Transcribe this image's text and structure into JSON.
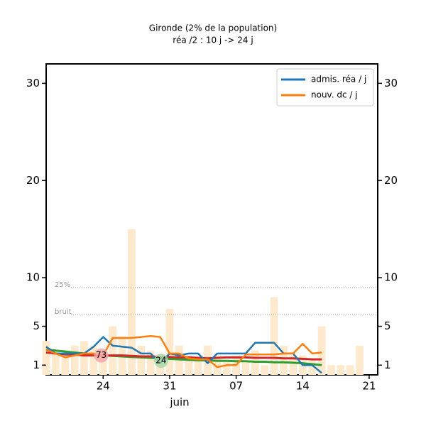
{
  "chart_data": {
    "type": "line",
    "title": "Gironde (2% de la population)",
    "subtitle": "réa /2 : 10 j -> 24 j",
    "x_label": "juin",
    "x": [
      18,
      19,
      20,
      21,
      22,
      23,
      24,
      25,
      26,
      27,
      28,
      29,
      30,
      31,
      32,
      33,
      34,
      35,
      36,
      37,
      38,
      39,
      40,
      41,
      42,
      43,
      44,
      45,
      46,
      47,
      48,
      49,
      50,
      51
    ],
    "xlim": [
      18,
      52.9
    ],
    "xticks": [
      {
        "value": 24,
        "label": "24"
      },
      {
        "value": 31,
        "label": "31"
      },
      {
        "value": 38,
        "label": "07"
      },
      {
        "value": 45,
        "label": "14"
      },
      {
        "value": 52,
        "label": "21"
      }
    ],
    "ylim": [
      0,
      32
    ],
    "yticks": [
      1,
      5,
      10,
      20,
      30
    ],
    "legend": "upper right",
    "series": [
      {
        "name": "admis. réa / j",
        "color": "#1f77b4",
        "values": [
          2.9,
          2.2,
          2.2,
          2.2,
          2.2,
          2.9,
          3.9,
          3.0,
          2.9,
          2.8,
          2.2,
          2.2,
          1.2,
          2.2,
          2.0,
          2.2,
          2.2,
          1.2,
          2.2,
          2.2,
          2.2,
          2.2,
          3.3,
          3.3,
          3.3,
          2.2,
          2.2,
          1.0,
          1.0,
          0.2,
          null,
          null,
          null,
          null
        ]
      },
      {
        "name": "nouv. dc / j",
        "color": "#ff7f0e",
        "values": [
          2.6,
          2.2,
          1.8,
          2.0,
          2.2,
          2.2,
          2.0,
          3.8,
          3.8,
          3.8,
          3.9,
          4.0,
          3.9,
          2.2,
          2.2,
          1.7,
          1.6,
          1.6,
          0.8,
          1.0,
          1.0,
          2.1,
          2.1,
          2.1,
          2.1,
          2.2,
          2.2,
          3.2,
          2.2,
          2.3,
          null,
          null,
          null,
          null
        ]
      }
    ],
    "trend_series": [
      {
        "color": "#2ca02c",
        "values": [
          2.6,
          2.5,
          2.4,
          2.3,
          2.2,
          2.1,
          2.0,
          1.95,
          1.9,
          1.85,
          1.8,
          1.75,
          1.7,
          1.65,
          1.6,
          1.55,
          1.5,
          1.5,
          1.45,
          1.45,
          1.4,
          1.4,
          1.35,
          1.35,
          1.3,
          1.3,
          1.25,
          1.2,
          1.1,
          1.0,
          null,
          null,
          null,
          null
        ]
      },
      {
        "color": "#d62728",
        "values": [
          2.3,
          2.2,
          2.1,
          2.1,
          2.0,
          2.0,
          2.0,
          2.0,
          2.0,
          1.95,
          1.9,
          1.9,
          1.85,
          1.85,
          1.8,
          1.8,
          1.75,
          1.7,
          1.75,
          1.8,
          1.8,
          1.8,
          1.75,
          1.75,
          1.75,
          1.7,
          1.7,
          1.65,
          1.6,
          1.6,
          null,
          null,
          null,
          null
        ]
      }
    ],
    "bars": {
      "color": "#ffe9cc",
      "values": [
        3.5,
        2.5,
        2.0,
        3.0,
        3.5,
        3.0,
        2.0,
        5.0,
        4.0,
        15,
        3.0,
        2.5,
        2.0,
        6.8,
        3.0,
        2.0,
        1.5,
        3.0,
        2.0,
        1.5,
        2.0,
        1.5,
        2.5,
        1.0,
        8.0,
        3.0,
        2.0,
        2.0,
        1.5,
        5.0,
        1.0,
        1.0,
        1.0,
        3.0
      ]
    },
    "thresholds": [
      {
        "label": "25%",
        "value": 9.0
      },
      {
        "label": "bruit",
        "value": 6.2
      }
    ],
    "markers": [
      {
        "label": "73",
        "x": 23.8,
        "y": 2.0,
        "color": "#f4a6a6"
      },
      {
        "label": "24",
        "x": 30.1,
        "y": 1.45,
        "color": "#a8d8a8"
      }
    ]
  }
}
